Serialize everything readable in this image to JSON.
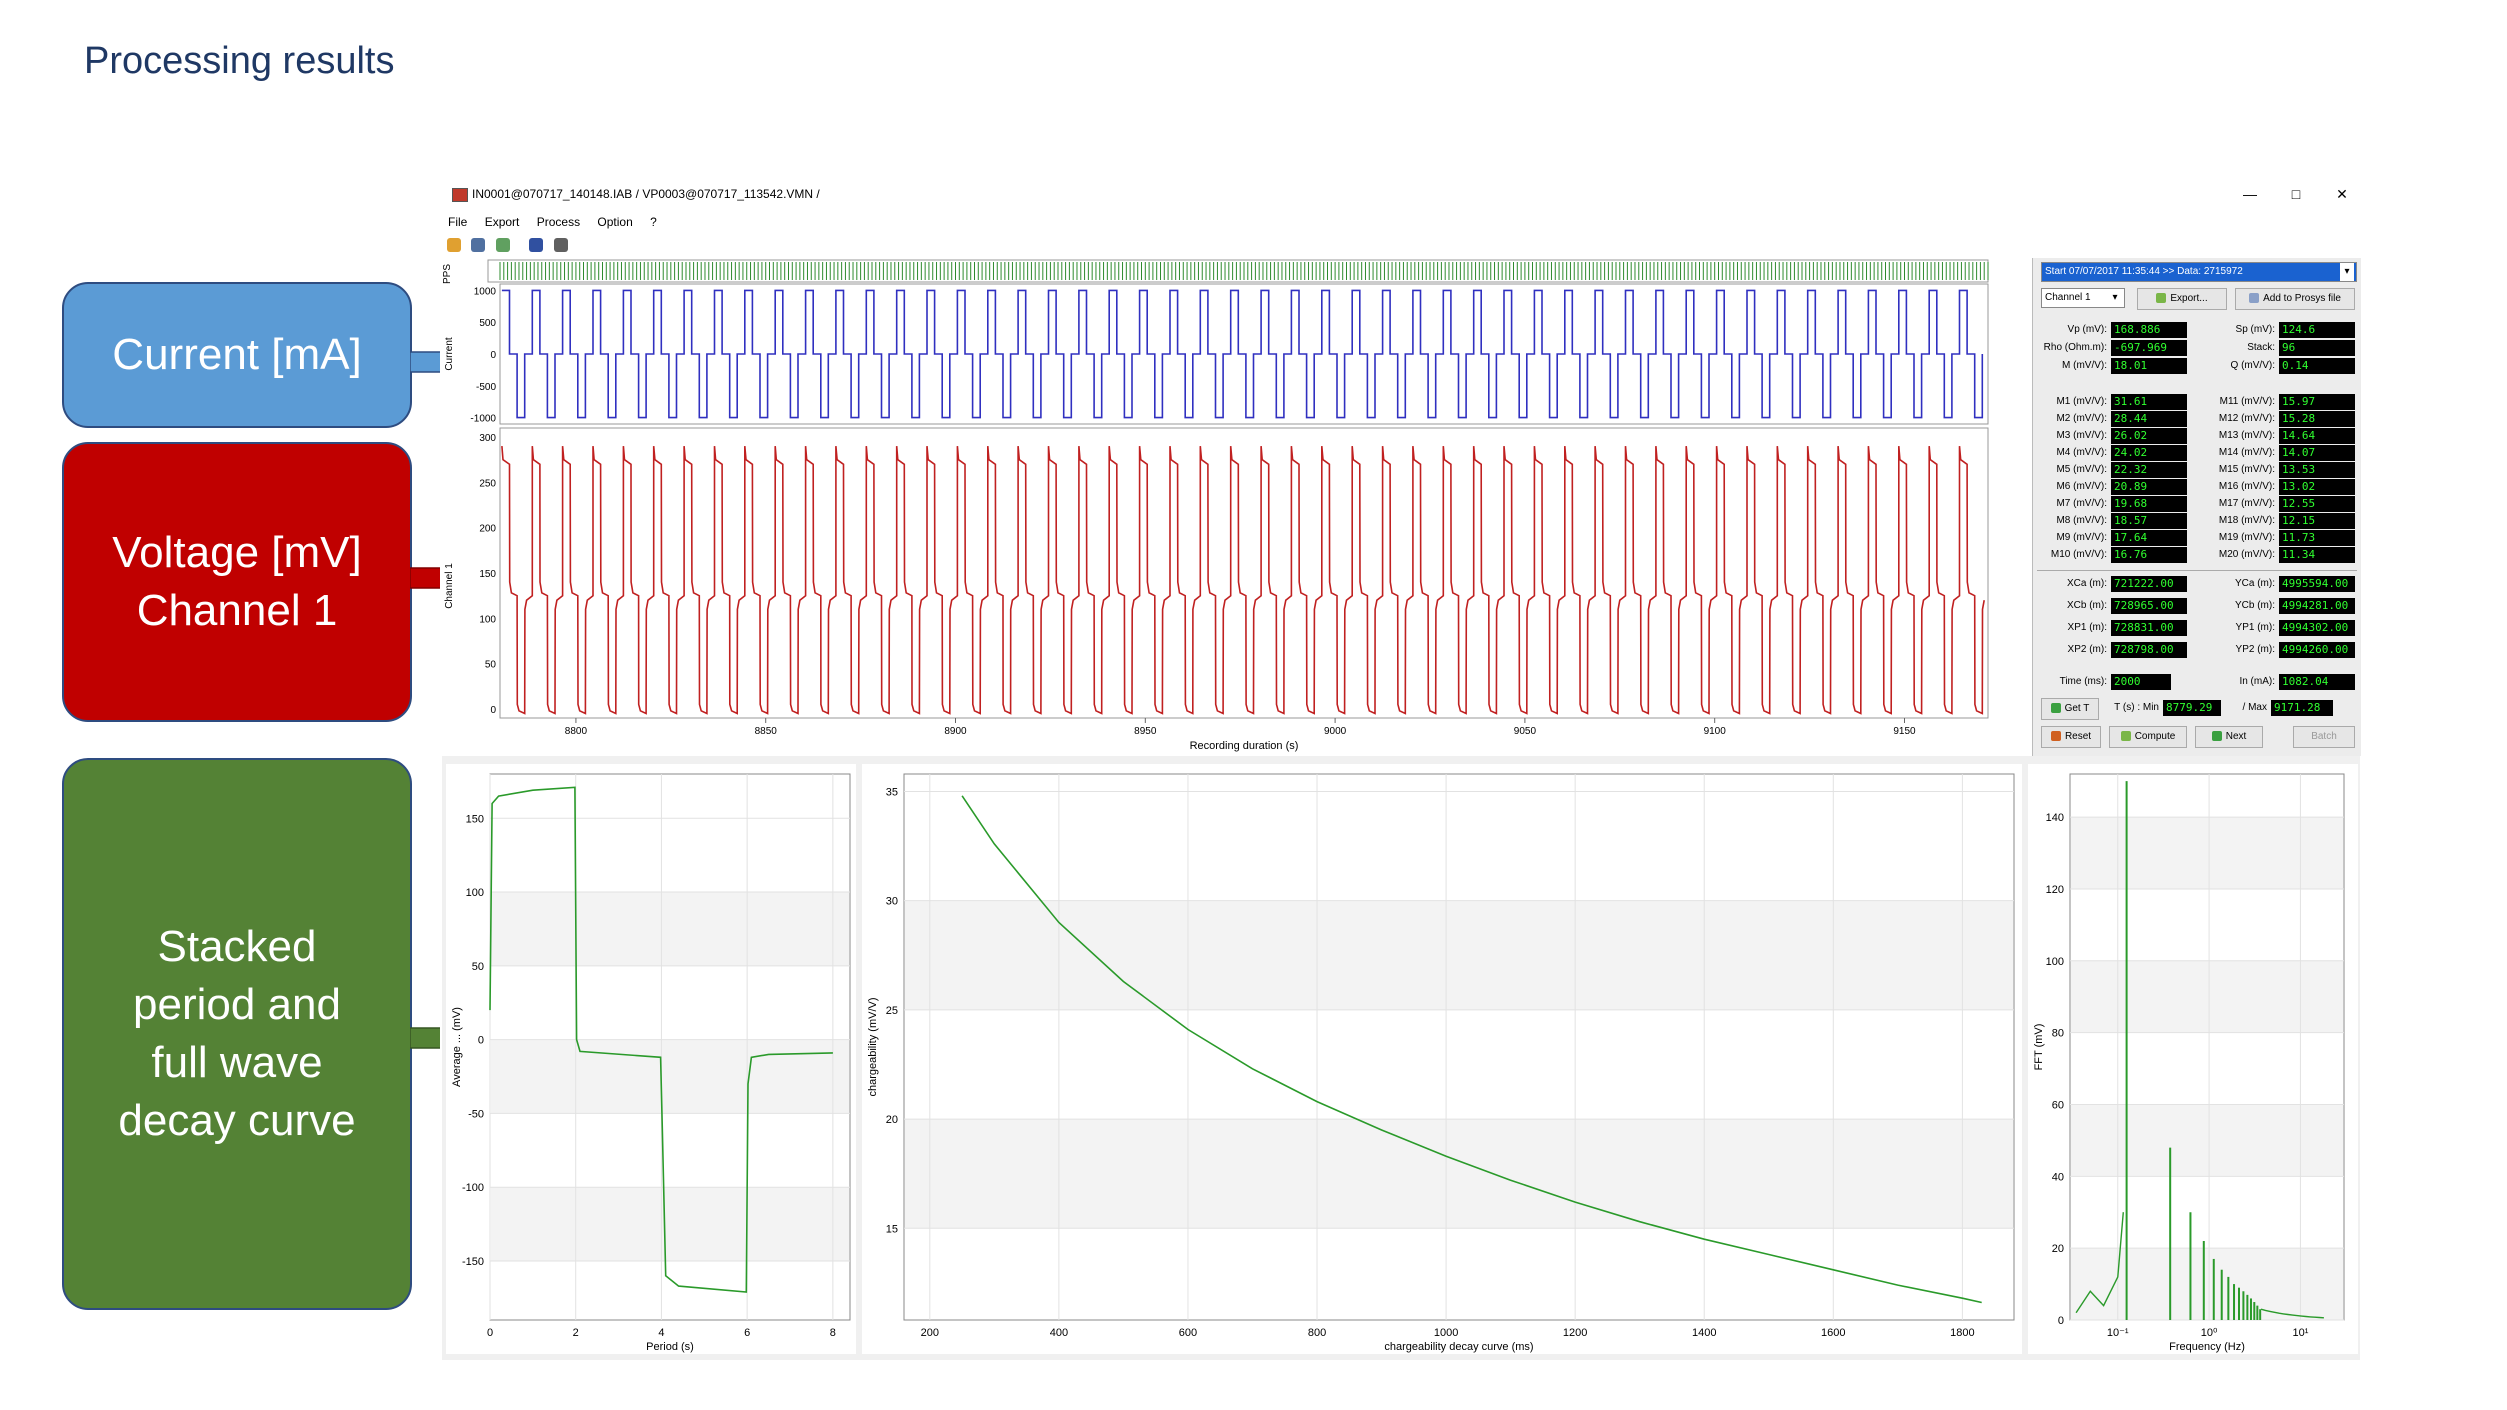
{
  "slide": {
    "title": "Processing results"
  },
  "callouts": {
    "current": "Current [mA]",
    "voltage_line1": "Voltage [mV]",
    "voltage_line2": "Channel 1",
    "stacked_line1": "Stacked",
    "stacked_line2": "period and",
    "stacked_line3": "full wave",
    "stacked_line4": "decay curve"
  },
  "window": {
    "title": "IN0001@070717_140148.IAB / VP0003@070717_113542.VMN /",
    "minimize": "—",
    "maximize": "□",
    "close": "✕"
  },
  "menu": {
    "file": "File",
    "export": "Export",
    "process": "Process",
    "option": "Option",
    "help": "?"
  },
  "colors": {
    "current": "#3030c0",
    "voltage": "#c02020",
    "green": "#2a9a2a",
    "pps": "#2e8b2e",
    "lcd_text": "#30ff30"
  },
  "timeseries": {
    "pps_label": "PPS",
    "current_label": "Current",
    "voltage_label": "Channel 1",
    "xlabel": "Recording duration (s)",
    "xticks": [
      "8800",
      "8850",
      "8900",
      "8950",
      "9000",
      "9050",
      "9100",
      "9150"
    ],
    "current_yticks": [
      "1000",
      "500",
      "0",
      "-500",
      "-1000"
    ],
    "voltage_yticks": [
      "300",
      "250",
      "200",
      "150",
      "100",
      "50",
      "0"
    ]
  },
  "side": {
    "start_select": "Start 07/07/2017 11:35:44  >> Data: 2715972",
    "channel_select": "Channel 1",
    "export_btn": "Export...",
    "add_prosys_btn": "Add to Prosys file",
    "vp_label": "Vp (mV):",
    "vp": "168.886",
    "sp_label": "Sp (mV):",
    "sp": "124.6",
    "rho_label": "Rho (Ohm.m):",
    "rho": "-697.969",
    "stack_label": "Stack:",
    "stack": "96",
    "m_label": "M (mV/V):",
    "m": "18.01",
    "q_label": "Q (mV/V):",
    "q": "0.14",
    "mwin": [
      {
        "label": "M1 (mV/V):",
        "value": "31.61"
      },
      {
        "label": "M2 (mV/V):",
        "value": "28.44"
      },
      {
        "label": "M3 (mV/V):",
        "value": "26.02"
      },
      {
        "label": "M4 (mV/V):",
        "value": "24.02"
      },
      {
        "label": "M5 (mV/V):",
        "value": "22.32"
      },
      {
        "label": "M6 (mV/V):",
        "value": "20.89"
      },
      {
        "label": "M7 (mV/V):",
        "value": "19.68"
      },
      {
        "label": "M8 (mV/V):",
        "value": "18.57"
      },
      {
        "label": "M9 (mV/V):",
        "value": "17.64"
      },
      {
        "label": "M10 (mV/V):",
        "value": "16.76"
      },
      {
        "label": "M11 (mV/V):",
        "value": "15.97"
      },
      {
        "label": "M12 (mV/V):",
        "value": "15.28"
      },
      {
        "label": "M13 (mV/V):",
        "value": "14.64"
      },
      {
        "label": "M14 (mV/V):",
        "value": "14.07"
      },
      {
        "label": "M15 (mV/V):",
        "value": "13.53"
      },
      {
        "label": "M16 (mV/V):",
        "value": "13.02"
      },
      {
        "label": "M17 (mV/V):",
        "value": "12.55"
      },
      {
        "label": "M18 (mV/V):",
        "value": "12.15"
      },
      {
        "label": "M19 (mV/V):",
        "value": "11.73"
      },
      {
        "label": "M20 (mV/V):",
        "value": "11.34"
      }
    ],
    "xca_label": "XCa (m):",
    "xca": "721222.00",
    "yca_label": "YCa (m):",
    "yca": "4995594.00",
    "xcb_label": "XCb (m):",
    "xcb": "728965.00",
    "ycb_label": "YCb (m):",
    "ycb": "4994281.00",
    "xp1_label": "XP1 (m):",
    "xp1": "728831.00",
    "yp1_label": "YP1 (m):",
    "yp1": "4994302.00",
    "xp2_label": "XP2 (m):",
    "xp2": "728798.00",
    "yp2_label": "YP2 (m):",
    "yp2": "4994260.00",
    "time_label": "Time (ms):",
    "time": "2000",
    "in_label": "In (mA):",
    "in": "1082.04",
    "gett_btn": "Get T",
    "tmin_label": "T (s) : Min",
    "tmin": "8779.29",
    "tmax_label": "/ Max",
    "tmax": "9171.28",
    "reset_btn": "Reset",
    "compute_btn": "Compute",
    "next_btn": "Next",
    "batch_btn": "Batch"
  },
  "chart_data": [
    {
      "type": "line",
      "title": "",
      "xlabel": "Period  (s)",
      "ylabel": "Average ... (mV)",
      "xlim": [
        0,
        8.4
      ],
      "ylim": [
        -190,
        180
      ],
      "xticks": [
        0,
        2,
        4,
        6,
        8
      ],
      "yticks": [
        150,
        100,
        50,
        0,
        -50,
        -100,
        -150
      ],
      "series": [
        {
          "x": [
            0,
            0.05,
            0.2,
            1,
            1.98,
            2.02,
            2.1,
            3.98,
            4.02,
            4.1,
            4.4,
            5.98,
            6.02,
            6.1,
            6.5,
            8
          ],
          "y": [
            20,
            160,
            165,
            169,
            171,
            0,
            -8,
            -12,
            -60,
            -160,
            -167,
            -171,
            -30,
            -12,
            -10,
            -9
          ]
        }
      ]
    },
    {
      "type": "line",
      "title": "",
      "xlabel": "chargeability decay curve (ms)",
      "ylabel": "chargeability (mV/V)",
      "xlim": [
        160,
        1880
      ],
      "ylim": [
        10.8,
        35.8
      ],
      "xticks": [
        200,
        400,
        600,
        800,
        1000,
        1200,
        1400,
        1600,
        1800
      ],
      "yticks": [
        35,
        30,
        25,
        20,
        15
      ],
      "series": [
        {
          "x": [
            250,
            300,
            400,
            500,
            600,
            700,
            800,
            900,
            1000,
            1100,
            1200,
            1300,
            1400,
            1500,
            1600,
            1700,
            1800,
            1830
          ],
          "y": [
            34.8,
            32.6,
            29.0,
            26.3,
            24.1,
            22.3,
            20.8,
            19.5,
            18.3,
            17.2,
            16.2,
            15.3,
            14.5,
            13.8,
            13.1,
            12.4,
            11.8,
            11.6
          ]
        }
      ]
    },
    {
      "type": "line",
      "title": "",
      "xlabel": "Frequency (Hz)",
      "ylabel": "FFT (mV)",
      "xscale": "log",
      "xlim": [
        0.03,
        30
      ],
      "ylim": [
        0,
        152
      ],
      "xtick_labels": [
        "10⁻¹",
        "10⁰",
        "10¹"
      ],
      "xticks": [
        0.1,
        1,
        10
      ],
      "yticks": [
        0,
        20,
        40,
        60,
        80,
        100,
        120,
        140
      ],
      "peaks": {
        "x": [
          0.125,
          0.375,
          0.625,
          0.875,
          1.125,
          1.375,
          1.625,
          1.875,
          2.125,
          2.375,
          2.625,
          2.875,
          3.125,
          3.375,
          3.625
        ],
        "y": [
          150,
          48,
          30,
          22,
          17,
          14,
          12,
          10,
          9,
          8,
          7,
          6,
          5,
          4,
          3
        ]
      }
    }
  ]
}
